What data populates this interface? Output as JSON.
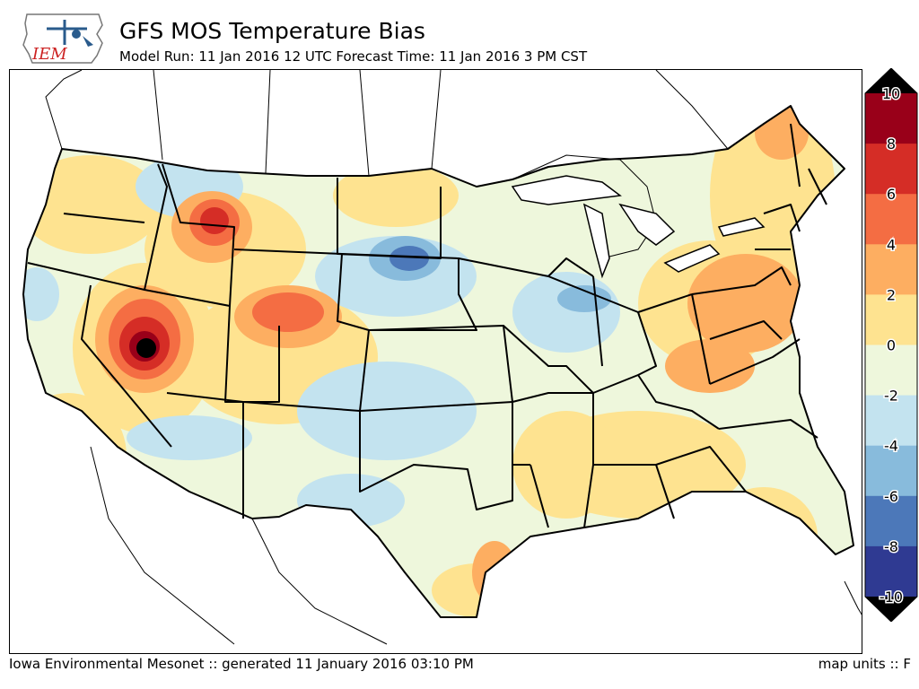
{
  "logo": {
    "text": "IEM",
    "brand_color": "#2a5b8c",
    "text_color": "#cc2222"
  },
  "header": {
    "title": "GFS MOS Temperature Bias",
    "subtitle": "Model Run: 11 Jan 2016 12 UTC Forecast Time: 11 Jan 2016 3 PM CST"
  },
  "colorbar": {
    "ticks": [
      "10",
      "8",
      "6",
      "4",
      "2",
      "0",
      "-2",
      "-4",
      "-6",
      "-8",
      "-10"
    ],
    "colors": [
      "#990019",
      "#d52d26",
      "#f46d43",
      "#fdae61",
      "#fee390",
      "#eef7dc",
      "#c3e3ef",
      "#88bbdc",
      "#4c78b9",
      "#2f3a92"
    ],
    "over_color": "#000000",
    "under_color": "#000000"
  },
  "footer": {
    "left": "Iowa Environmental Mesonet :: generated 11 January 2016 03:10 PM",
    "right": "map units :: F"
  }
}
